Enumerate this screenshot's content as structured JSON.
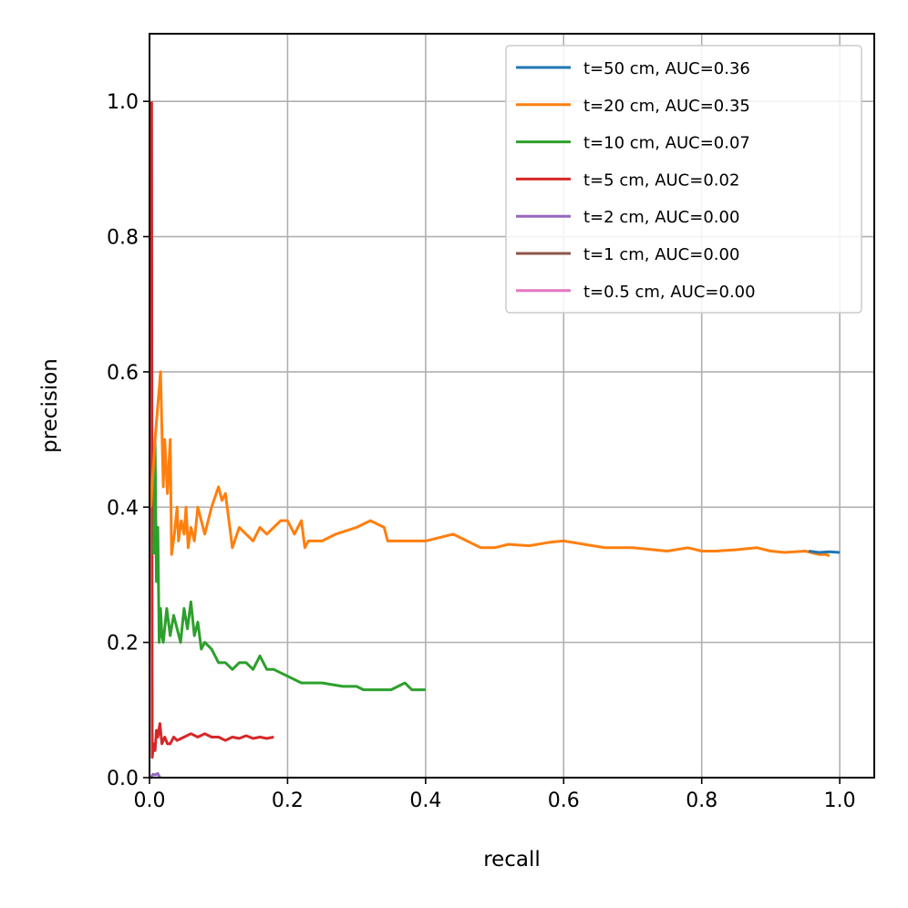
{
  "chart_data": {
    "type": "line",
    "title": "",
    "xlabel": "recall",
    "ylabel": "precision",
    "xlim": [
      0.0,
      1.05
    ],
    "ylim": [
      0.0,
      1.1
    ],
    "xticks": [
      "0.0",
      "0.2",
      "0.4",
      "0.6",
      "0.8",
      "1.0"
    ],
    "yticks": [
      "0.0",
      "0.2",
      "0.4",
      "0.6",
      "0.8",
      "1.0"
    ],
    "grid": true,
    "legend_position": "top-right",
    "series": [
      {
        "name": "t=50 cm, AUC=0.36",
        "color": "#1f77b4",
        "x": [
          0.955,
          0.97,
          0.985,
          1.0
        ],
        "y": [
          0.335,
          0.333,
          0.334,
          0.333
        ]
      },
      {
        "name": "t=20 cm, AUC=0.35",
        "color": "#ff7f0e",
        "x": [
          0.002,
          0.005,
          0.008,
          0.012,
          0.016,
          0.02,
          0.022,
          0.026,
          0.03,
          0.032,
          0.036,
          0.04,
          0.042,
          0.046,
          0.05,
          0.053,
          0.056,
          0.06,
          0.065,
          0.07,
          0.075,
          0.08,
          0.09,
          0.1,
          0.105,
          0.11,
          0.115,
          0.12,
          0.13,
          0.14,
          0.15,
          0.16,
          0.17,
          0.18,
          0.19,
          0.2,
          0.21,
          0.22,
          0.225,
          0.23,
          0.25,
          0.27,
          0.3,
          0.32,
          0.34,
          0.345,
          0.36,
          0.38,
          0.4,
          0.42,
          0.44,
          0.46,
          0.48,
          0.5,
          0.52,
          0.55,
          0.58,
          0.6,
          0.63,
          0.66,
          0.7,
          0.72,
          0.75,
          0.78,
          0.8,
          0.82,
          0.85,
          0.88,
          0.9,
          0.92,
          0.95,
          0.97,
          0.98,
          0.985
        ],
        "y": [
          0.4,
          0.45,
          0.5,
          0.55,
          0.6,
          0.43,
          0.5,
          0.42,
          0.5,
          0.33,
          0.36,
          0.4,
          0.35,
          0.38,
          0.36,
          0.4,
          0.34,
          0.37,
          0.35,
          0.4,
          0.38,
          0.36,
          0.4,
          0.43,
          0.41,
          0.42,
          0.38,
          0.34,
          0.37,
          0.36,
          0.35,
          0.37,
          0.36,
          0.37,
          0.38,
          0.38,
          0.36,
          0.38,
          0.34,
          0.35,
          0.35,
          0.36,
          0.37,
          0.38,
          0.37,
          0.35,
          0.35,
          0.35,
          0.35,
          0.355,
          0.36,
          0.35,
          0.34,
          0.34,
          0.345,
          0.343,
          0.348,
          0.35,
          0.345,
          0.34,
          0.34,
          0.338,
          0.335,
          0.34,
          0.335,
          0.335,
          0.337,
          0.34,
          0.335,
          0.333,
          0.335,
          0.33,
          0.33,
          0.328
        ]
      },
      {
        "name": "t=10 cm, AUC=0.07",
        "color": "#2ca02c",
        "x": [
          0.006,
          0.008,
          0.01,
          0.012,
          0.014,
          0.016,
          0.018,
          0.02,
          0.025,
          0.03,
          0.035,
          0.04,
          0.045,
          0.05,
          0.055,
          0.06,
          0.065,
          0.07,
          0.075,
          0.08,
          0.09,
          0.1,
          0.11,
          0.12,
          0.13,
          0.14,
          0.15,
          0.16,
          0.17,
          0.18,
          0.2,
          0.22,
          0.25,
          0.28,
          0.3,
          0.31,
          0.33,
          0.35,
          0.37,
          0.38,
          0.4
        ],
        "y": [
          0.33,
          0.5,
          0.29,
          0.37,
          0.2,
          0.25,
          0.21,
          0.2,
          0.25,
          0.21,
          0.24,
          0.22,
          0.2,
          0.25,
          0.22,
          0.26,
          0.21,
          0.23,
          0.19,
          0.2,
          0.19,
          0.17,
          0.17,
          0.16,
          0.17,
          0.17,
          0.16,
          0.18,
          0.16,
          0.16,
          0.15,
          0.14,
          0.14,
          0.135,
          0.135,
          0.13,
          0.13,
          0.13,
          0.14,
          0.13,
          0.13
        ]
      },
      {
        "name": "t=5 cm, AUC=0.02",
        "color": "#d62728",
        "x": [
          0.003,
          0.004,
          0.006,
          0.008,
          0.01,
          0.012,
          0.015,
          0.018,
          0.022,
          0.026,
          0.03,
          0.035,
          0.04,
          0.05,
          0.06,
          0.07,
          0.08,
          0.09,
          0.1,
          0.11,
          0.12,
          0.13,
          0.14,
          0.15,
          0.16,
          0.17,
          0.18
        ],
        "y": [
          1.0,
          0.03,
          0.05,
          0.04,
          0.07,
          0.06,
          0.08,
          0.05,
          0.06,
          0.05,
          0.05,
          0.06,
          0.055,
          0.06,
          0.065,
          0.06,
          0.065,
          0.06,
          0.06,
          0.055,
          0.06,
          0.058,
          0.062,
          0.058,
          0.06,
          0.058,
          0.06
        ]
      },
      {
        "name": "t=2 cm, AUC=0.00",
        "color": "#9467bd",
        "x": [
          0.002,
          0.005,
          0.008,
          0.012,
          0.015
        ],
        "y": [
          0.0,
          0.005,
          0.004,
          0.006,
          0.0
        ]
      },
      {
        "name": "t=1 cm, AUC=0.00",
        "color": "#8c564b",
        "x": [
          0.002,
          0.004
        ],
        "y": [
          0.0,
          0.0
        ]
      },
      {
        "name": "t=0.5 cm, AUC=0.00",
        "color": "#e377c2",
        "x": [
          0.002,
          0.003
        ],
        "y": [
          0.0,
          0.0
        ]
      }
    ]
  }
}
